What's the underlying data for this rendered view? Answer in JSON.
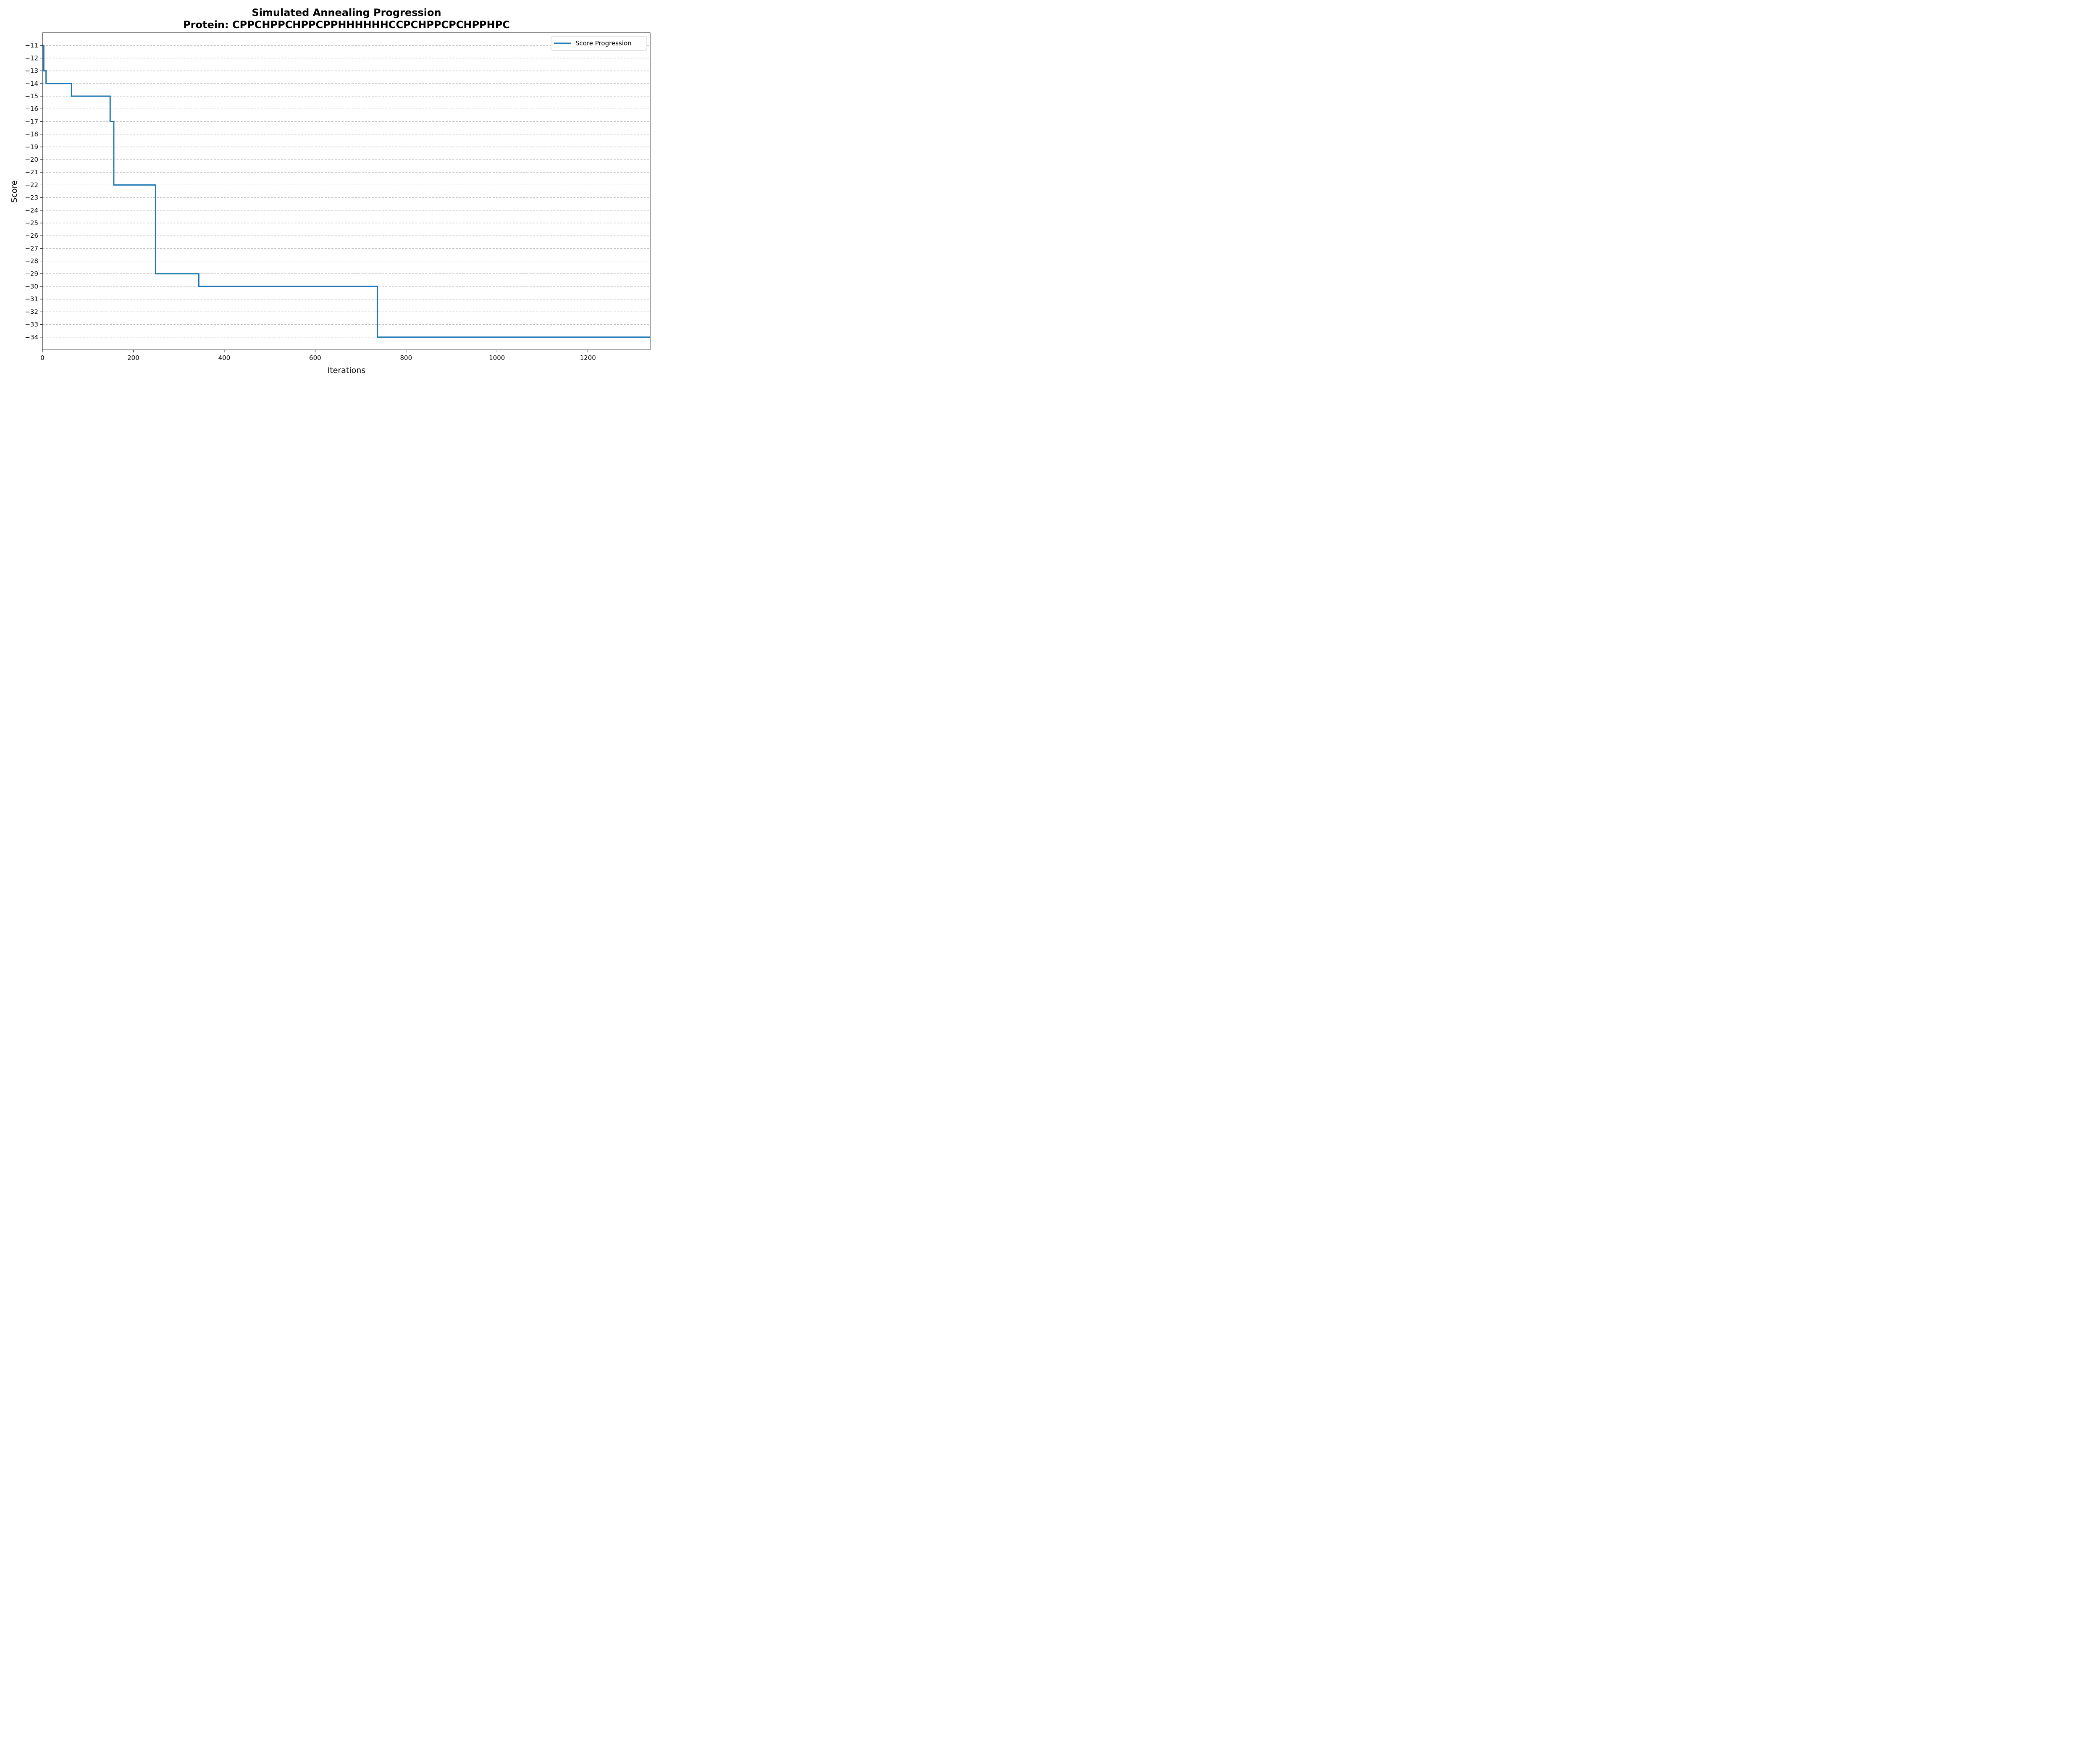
{
  "chart_data": {
    "type": "line",
    "title": "Simulated Annealing Progression",
    "subtitle": "Protein: CPPCHPPCHPPCPPHHHHHHCCPCHPPCPCHPPHPC",
    "xlabel": "Iterations",
    "ylabel": "Score",
    "xlim": [
      0,
      1337
    ],
    "ylim": [
      -35,
      -10
    ],
    "x_ticks": [
      0,
      200,
      400,
      600,
      800,
      1000,
      1200
    ],
    "y_ticks": [
      -34,
      -33,
      -32,
      -31,
      -30,
      -29,
      -28,
      -27,
      -26,
      -25,
      -24,
      -23,
      -22,
      -21,
      -20,
      -19,
      -18,
      -17,
      -16,
      -15,
      -14,
      -13,
      -12,
      -11
    ],
    "grid": "horizontal dashed",
    "legend_position": "top-right",
    "series": [
      {
        "name": "Score Progression",
        "color": "#1f77b4",
        "step": true,
        "x": [
          0,
          3,
          8,
          64,
          149,
          157,
          249,
          344,
          737,
          1337
        ],
        "y": [
          -11,
          -13,
          -14,
          -15,
          -17,
          -22,
          -29,
          -30,
          -34,
          -34
        ]
      }
    ]
  }
}
